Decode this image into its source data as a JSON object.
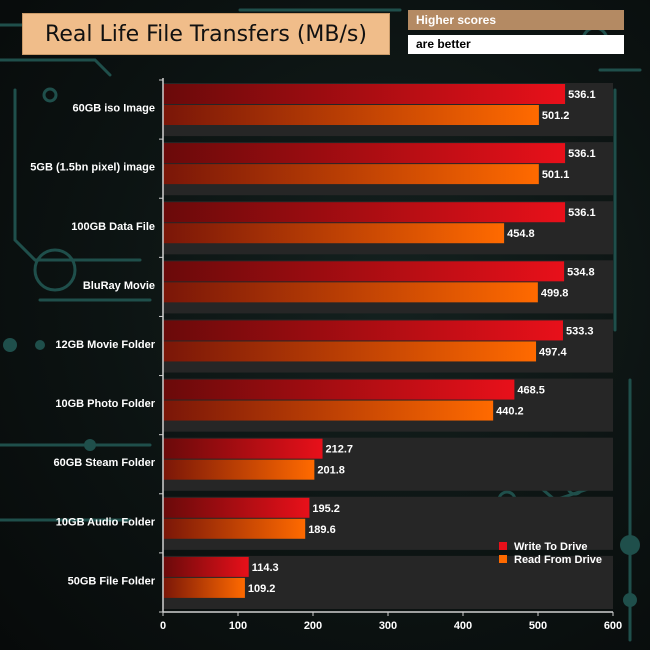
{
  "header": {
    "title": "Real Life File Transfers (MB/s)",
    "note_line1": "Higher scores",
    "note_line2": "are better"
  },
  "colors": {
    "write": "#e8101a",
    "write_dark": "#6a0a0a",
    "read": "#ff6a00",
    "read_dark": "#7a1608",
    "band": "#262626",
    "axis": "#d0d0d0",
    "title_bg": "#f0bd8a",
    "circuit": "#1f4f4b"
  },
  "chart_data": {
    "type": "bar",
    "orientation": "horizontal",
    "title": "Real Life File Transfers (MB/s)",
    "categories": [
      "60GB iso Image",
      "5GB (1.5bn pixel) image",
      "100GB Data File",
      "BluRay Movie",
      "12GB Movie Folder",
      "10GB Photo Folder",
      "60GB Steam Folder",
      "10GB Audio Folder",
      "50GB File Folder"
    ],
    "series": [
      {
        "name": "Write To  Drive",
        "values": [
          536.1,
          536.1,
          536.1,
          534.8,
          533.3,
          468.5,
          212.7,
          195.2,
          114.3
        ]
      },
      {
        "name": "Read From  Drive",
        "values": [
          501.2,
          501.1,
          454.8,
          499.8,
          497.4,
          440.2,
          201.8,
          189.6,
          109.2
        ]
      }
    ],
    "xlim": [
      0,
      600
    ],
    "xticks": [
      "0",
      "100",
      "200",
      "300",
      "400",
      "500",
      "600"
    ],
    "legend_position": "bottom-right",
    "grid": false
  }
}
